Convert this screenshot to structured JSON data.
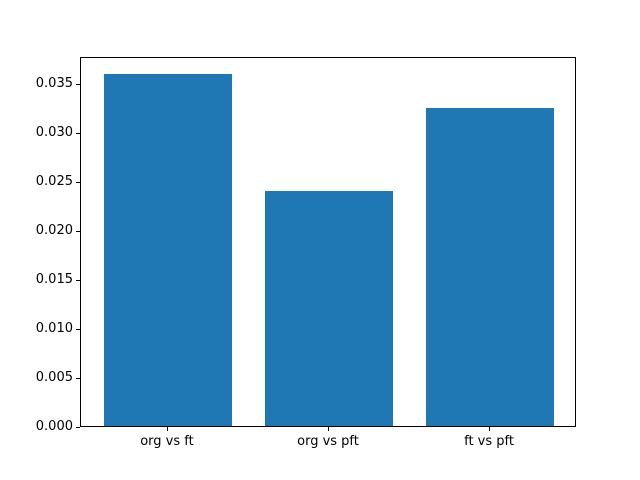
{
  "chart_data": {
    "type": "bar",
    "title": "",
    "xlabel": "",
    "ylabel": "",
    "categories": [
      "org vs ft",
      "org vs pft",
      "ft vs pft"
    ],
    "values": [
      0.036,
      0.024,
      0.0325
    ],
    "bar_color": "#1f77b4",
    "bar_width": 0.8,
    "xlim": [
      -0.54,
      2.54
    ],
    "ylim": [
      0,
      0.0378
    ],
    "yticks": [
      {
        "value": 0.0,
        "label": "0.000"
      },
      {
        "value": 0.005,
        "label": "0.005"
      },
      {
        "value": 0.01,
        "label": "0.010"
      },
      {
        "value": 0.015,
        "label": "0.015"
      },
      {
        "value": 0.02,
        "label": "0.020"
      },
      {
        "value": 0.025,
        "label": "0.025"
      },
      {
        "value": 0.03,
        "label": "0.030"
      },
      {
        "value": 0.035,
        "label": "0.035"
      }
    ],
    "grid": false,
    "legend": null,
    "spine_color": "#000000",
    "background_color": "#ffffff"
  }
}
